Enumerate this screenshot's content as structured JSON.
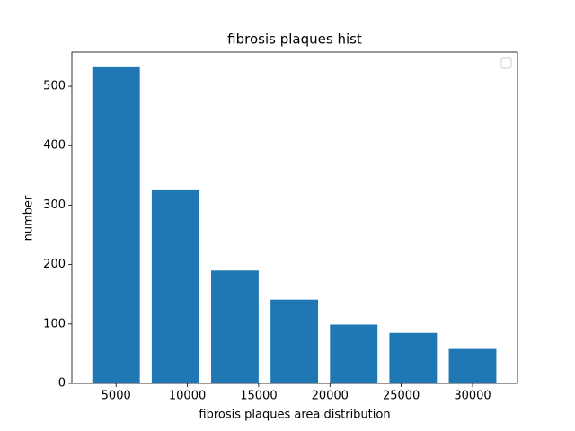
{
  "chart_data": {
    "type": "bar",
    "title": "fibrosis plaques hist",
    "xlabel": "fibrosis plaques area distribution",
    "ylabel": "number",
    "x": [
      5000,
      9167,
      13333,
      17500,
      21667,
      25833,
      30000
    ],
    "values": [
      532,
      325,
      190,
      141,
      99,
      85,
      58
    ],
    "bar_width": 3333,
    "color": "#1f77b4",
    "xlim": [
      1900,
      33150
    ],
    "xticks": [
      5000,
      10000,
      15000,
      20000,
      25000,
      30000
    ],
    "ylim": [
      0,
      557.5
    ],
    "yticks": [
      0,
      100,
      200,
      300,
      400,
      500
    ]
  }
}
